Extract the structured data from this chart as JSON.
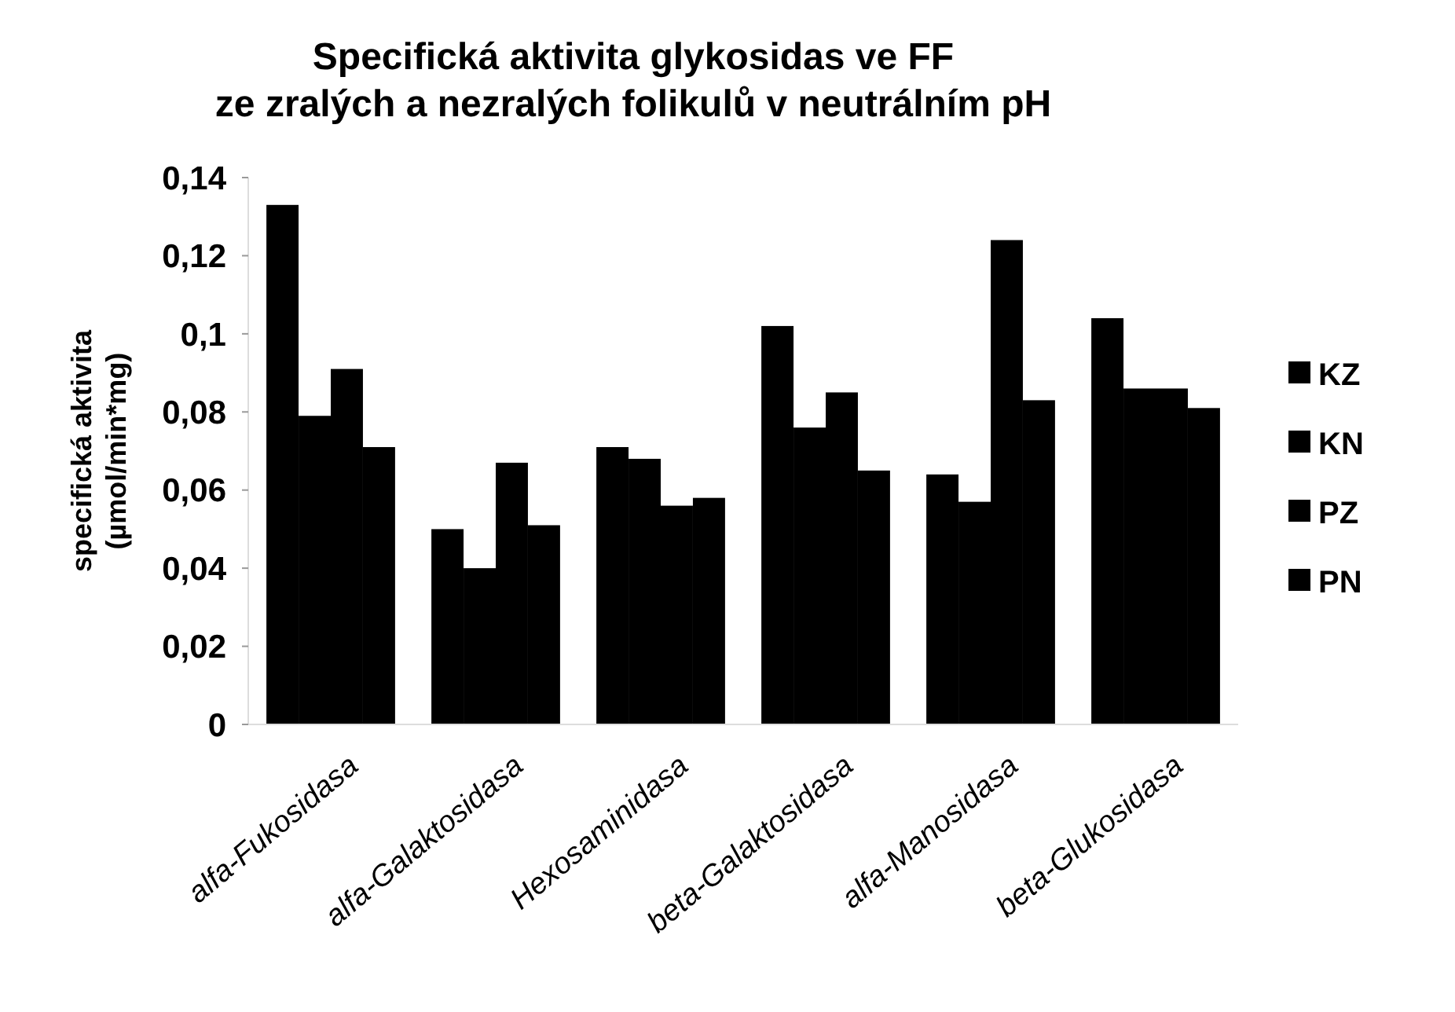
{
  "chart_data": {
    "type": "bar",
    "title": "Specifická aktivita glykosidas ve FF\nze zralých a nezralých folikulů v neutrálním pH",
    "ylabel": "specifická aktivita\n(µmol/min*mg)",
    "categories": [
      "alfa-Fukosidasa",
      "alfa-Galaktosidasa",
      "Hexosaminidasa",
      "beta-Galaktosidasa",
      "alfa-Manosidasa",
      "beta-Glukosidasa"
    ],
    "series": [
      {
        "name": "KZ",
        "color": "#000000",
        "values": [
          0.133,
          0.05,
          0.071,
          0.102,
          0.064,
          0.104
        ]
      },
      {
        "name": "KN",
        "color": "#000000",
        "values": [
          0.079,
          0.04,
          0.068,
          0.076,
          0.057,
          0.086
        ]
      },
      {
        "name": "PZ",
        "color": "#000000",
        "values": [
          0.091,
          0.067,
          0.056,
          0.085,
          0.124,
          0.086
        ]
      },
      {
        "name": "PN",
        "color": "#000000",
        "values": [
          0.071,
          0.051,
          0.058,
          0.065,
          0.083,
          0.081
        ]
      }
    ],
    "ylim": [
      0,
      0.14
    ],
    "yticks": [
      0,
      {
        "value": 0.02,
        "label": "0,02"
      },
      {
        "value": 0.04,
        "label": "0,04"
      },
      {
        "value": 0.06,
        "label": "0,06"
      },
      {
        "value": 0.08,
        "label": "0,08"
      },
      {
        "value": 0.1,
        "label": "0,1"
      },
      {
        "value": 0.12,
        "label": "0,12"
      },
      {
        "value": 0.14,
        "label": "0,14"
      }
    ],
    "legend": "right"
  }
}
